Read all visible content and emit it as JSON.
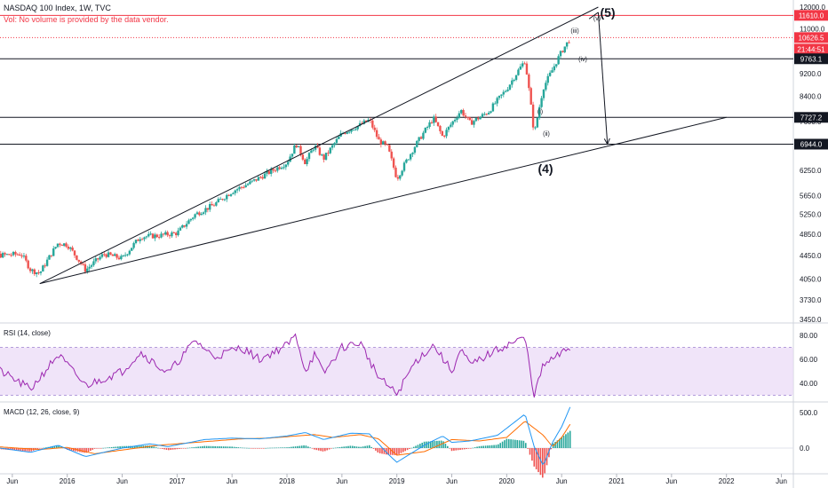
{
  "header": {
    "title": "NASDAQ 100 Index, 1W, TVC",
    "vol_note": "Vol: No volume is provided by the data vendor."
  },
  "colors": {
    "up": "#26a69a",
    "down": "#ef5350",
    "rsi": "#9c27b0",
    "rsi_band": "#e9d8f7",
    "macd": "#2196f3",
    "signal": "#ff6d00",
    "hist_up": "#26a69a",
    "hist_down": "#ef5350",
    "label_red": "#f23645",
    "label_black": "#131722"
  },
  "price_axis": {
    "ticks": [
      "12000.0",
      "11000.0",
      "10000.0",
      "9200.0",
      "8400.0",
      "7600.0",
      "6900.0",
      "6250.0",
      "5650.0",
      "5250.0",
      "4850.0",
      "4450.0",
      "4050.0",
      "3730.0",
      "3450.0"
    ],
    "labels": [
      {
        "text": "11610.0",
        "style": "red"
      },
      {
        "text": "10626.5",
        "style": "red"
      },
      {
        "text": "21:44:51",
        "style": "red"
      },
      {
        "text": "9763.1",
        "style": "black"
      },
      {
        "text": "7727.2",
        "style": "black"
      },
      {
        "text": "6944.0",
        "style": "black"
      }
    ]
  },
  "rsi_panel": {
    "title": "RSI (14, close)",
    "ticks": [
      "80.00",
      "60.00",
      "40.00"
    ]
  },
  "macd_panel": {
    "title": "MACD (12, 26, close, 9)",
    "ticks": [
      "500.0",
      "0.0"
    ]
  },
  "time_axis": {
    "labels": [
      "Jun",
      "2016",
      "Jun",
      "2017",
      "Jun",
      "2018",
      "Jun",
      "2019",
      "Jun",
      "2020",
      "Jun",
      "2021",
      "Jun",
      "2022",
      "Jun"
    ]
  },
  "waves": {
    "five": "(5)",
    "four": "(4)",
    "i": "(i)",
    "ii": "(ii)",
    "iii": "(iii)",
    "iv": "(iv)",
    "v": "(v)"
  },
  "chart_data": {
    "type": "candlestick",
    "symbol": "NASDAQ 100 Index",
    "interval": "1W",
    "horizontal_levels": [
      11610.0,
      9763.1,
      7727.2,
      6944.0
    ],
    "last_price": 10626.5,
    "price_series": [
      [
        "2015-03",
        4450
      ],
      [
        "2015-05",
        4460
      ],
      [
        "2015-07",
        4480
      ],
      [
        "2015-08",
        4200
      ],
      [
        "2015-09",
        4150
      ],
      [
        "2015-11",
        4680
      ],
      [
        "2015-12",
        4650
      ],
      [
        "2016-02",
        4200
      ],
      [
        "2016-04",
        4480
      ],
      [
        "2016-06",
        4400
      ],
      [
        "2016-08",
        4800
      ],
      [
        "2016-10",
        4820
      ],
      [
        "2016-12",
        4870
      ],
      [
        "2017-02",
        5250
      ],
      [
        "2017-04",
        5450
      ],
      [
        "2017-06",
        5750
      ],
      [
        "2017-08",
        5950
      ],
      [
        "2017-10",
        6200
      ],
      [
        "2017-12",
        6450
      ],
      [
        "2018-01",
        6950
      ],
      [
        "2018-02",
        6450
      ],
      [
        "2018-03",
        6900
      ],
      [
        "2018-04",
        6550
      ],
      [
        "2018-06",
        7250
      ],
      [
        "2018-08",
        7500
      ],
      [
        "2018-09",
        7650
      ],
      [
        "2018-10",
        7050
      ],
      [
        "2018-11",
        6850
      ],
      [
        "2018-12",
        6050
      ],
      [
        "2019-02",
        6900
      ],
      [
        "2019-04",
        7700
      ],
      [
        "2019-05",
        7150
      ],
      [
        "2019-07",
        7950
      ],
      [
        "2019-08",
        7550
      ],
      [
        "2019-10",
        7900
      ],
      [
        "2019-12",
        8650
      ],
      [
        "2020-02",
        9700
      ],
      [
        "2020-03",
        7200
      ],
      [
        "2020-04",
        8700
      ],
      [
        "2020-05",
        9350
      ],
      [
        "2020-06",
        10050
      ],
      [
        "2020-07",
        10626.5
      ]
    ],
    "rsi_series": [
      [
        "2015-03",
        58
      ],
      [
        "2015-08",
        35
      ],
      [
        "2015-11",
        64
      ],
      [
        "2016-02",
        38
      ],
      [
        "2016-06",
        50
      ],
      [
        "2016-08",
        66
      ],
      [
        "2016-11",
        48
      ],
      [
        "2017-02",
        76
      ],
      [
        "2017-04",
        62
      ],
      [
        "2017-07",
        70
      ],
      [
        "2017-09",
        60
      ],
      [
        "2017-12",
        72
      ],
      [
        "2018-01",
        80
      ],
      [
        "2018-02",
        50
      ],
      [
        "2018-03",
        64
      ],
      [
        "2018-04",
        48
      ],
      [
        "2018-06",
        70
      ],
      [
        "2018-08",
        74
      ],
      [
        "2018-10",
        45
      ],
      [
        "2018-12",
        31
      ],
      [
        "2019-02",
        58
      ],
      [
        "2019-04",
        72
      ],
      [
        "2019-06",
        50
      ],
      [
        "2019-07",
        68
      ],
      [
        "2019-08",
        55
      ],
      [
        "2019-10",
        64
      ],
      [
        "2019-12",
        72
      ],
      [
        "2020-02",
        78
      ],
      [
        "2020-03",
        30
      ],
      [
        "2020-04",
        55
      ],
      [
        "2020-06",
        65
      ],
      [
        "2020-07",
        70
      ]
    ],
    "macd_series": [
      [
        "2015-03",
        30
      ],
      [
        "2015-08",
        -60
      ],
      [
        "2015-11",
        40
      ],
      [
        "2016-02",
        -120
      ],
      [
        "2016-06",
        0
      ],
      [
        "2016-09",
        60
      ],
      [
        "2016-11",
        20
      ],
      [
        "2017-03",
        120
      ],
      [
        "2017-06",
        140
      ],
      [
        "2017-09",
        130
      ],
      [
        "2017-12",
        170
      ],
      [
        "2018-02",
        220
      ],
      [
        "2018-04",
        120
      ],
      [
        "2018-07",
        210
      ],
      [
        "2018-09",
        200
      ],
      [
        "2018-11",
        -80
      ],
      [
        "2018-12",
        -200
      ],
      [
        "2019-03",
        40
      ],
      [
        "2019-05",
        170
      ],
      [
        "2019-06",
        80
      ],
      [
        "2019-08",
        100
      ],
      [
        "2019-11",
        180
      ],
      [
        "2020-02",
        480
      ],
      [
        "2020-03",
        20
      ],
      [
        "2020-04",
        -250
      ],
      [
        "2020-05",
        80
      ],
      [
        "2020-06",
        300
      ],
      [
        "2020-07",
        600
      ]
    ],
    "signal_series": [
      [
        "2015-03",
        30
      ],
      [
        "2015-09",
        -20
      ],
      [
        "2015-12",
        10
      ],
      [
        "2016-03",
        -80
      ],
      [
        "2016-07",
        -10
      ],
      [
        "2016-10",
        40
      ],
      [
        "2017-03",
        90
      ],
      [
        "2017-07",
        130
      ],
      [
        "2017-10",
        140
      ],
      [
        "2017-12",
        160
      ],
      [
        "2018-03",
        190
      ],
      [
        "2018-05",
        150
      ],
      [
        "2018-08",
        190
      ],
      [
        "2018-10",
        130
      ],
      [
        "2018-12",
        -100
      ],
      [
        "2019-03",
        -50
      ],
      [
        "2019-06",
        120
      ],
      [
        "2019-09",
        100
      ],
      [
        "2019-12",
        150
      ],
      [
        "2020-02",
        380
      ],
      [
        "2020-04",
        180
      ],
      [
        "2020-05",
        20
      ],
      [
        "2020-06",
        150
      ],
      [
        "2020-07",
        350
      ]
    ],
    "trendlines": [
      {
        "from": [
          "2015-09",
          3980
        ],
        "to": [
          "2020-10",
          12000
        ]
      },
      {
        "from": [
          "2015-09",
          3980
        ],
        "to": [
          "2021-12",
          7727.2
        ]
      }
    ],
    "arrows": [
      {
        "from": [
          "2020-09",
          11450
        ],
        "to": [
          "2020-10",
          11750
        ]
      },
      {
        "from": [
          "2020-10",
          11750
        ],
        "to": [
          "2020-11",
          6944.0
        ]
      }
    ]
  }
}
